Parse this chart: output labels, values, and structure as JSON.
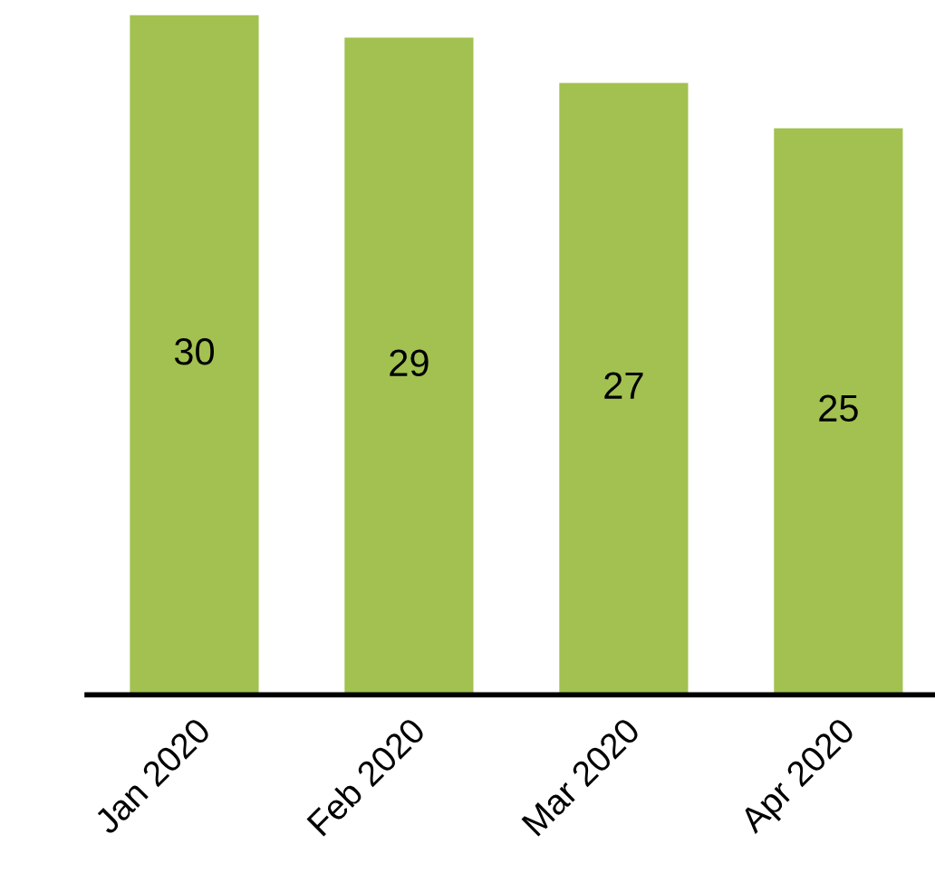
{
  "chart_data": {
    "type": "bar",
    "categories": [
      "Jan 2020",
      "Feb 2020",
      "Mar 2020",
      "Apr 2020"
    ],
    "values": [
      30,
      29,
      27,
      25
    ],
    "color": "#a2c150",
    "tick_labels": "x",
    "data_labels": true,
    "grid": false,
    "legend": false
  }
}
